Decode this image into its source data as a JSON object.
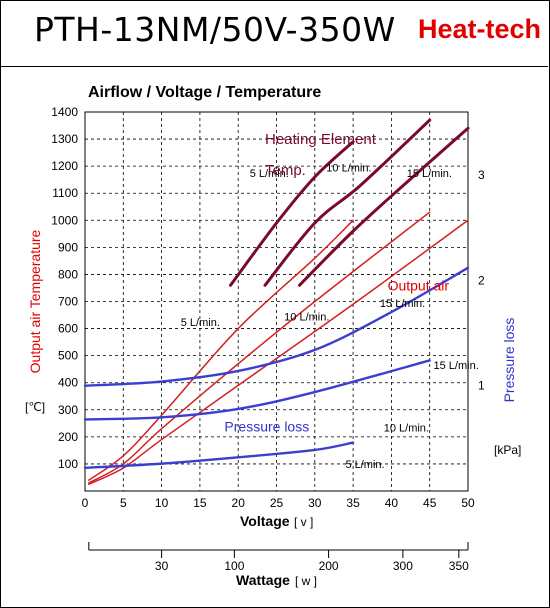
{
  "header": {
    "title": "PTH-13NM/50V-350W",
    "brand": "Heat-tech"
  },
  "chart_data": {
    "type": "line",
    "title": "Airflow / Voltage / Temperature",
    "xlabel": "Voltage",
    "xunit": "[ v ]",
    "ylabel": "Output air Temperature",
    "yunit": "[℃]",
    "y2label": "Pressure loss",
    "y2unit": "[kPa]",
    "x2label": "Wattage",
    "x2unit": "[ w ]",
    "xlim": [
      0,
      50
    ],
    "ylim": [
      0,
      1400
    ],
    "y2lim": [
      0,
      3.6
    ],
    "xticks": [
      0,
      5,
      10,
      15,
      20,
      25,
      30,
      35,
      40,
      45,
      50
    ],
    "yticks": [
      100,
      200,
      300,
      400,
      500,
      600,
      700,
      800,
      900,
      1000,
      1100,
      1200,
      1300,
      1400
    ],
    "y2ticks": [
      1,
      2,
      3
    ],
    "wattage_ticks": [
      {
        "label": "30",
        "voltage": 10
      },
      {
        "label": "100",
        "voltage": 19.5
      },
      {
        "label": "200",
        "voltage": 31.8
      },
      {
        "label": "300",
        "voltage": 41.5
      },
      {
        "label": "350",
        "voltage": 48.8
      }
    ],
    "grid": true,
    "groups": {
      "element": "Heating Element\nTemp.",
      "output": "Output air",
      "pressure": "Pressure loss"
    },
    "series": [
      {
        "group": "element",
        "name": "5 L/min.",
        "x": [
          19,
          25,
          30,
          35
        ],
        "y": [
          760,
          990,
          1160,
          1290
        ]
      },
      {
        "group": "element",
        "name": "10 L/min.",
        "x": [
          23.5,
          30,
          36,
          45
        ],
        "y": [
          760,
          990,
          1130,
          1370
        ]
      },
      {
        "group": "element",
        "name": "15 L/min.",
        "x": [
          28,
          35,
          42,
          50
        ],
        "y": [
          760,
          960,
          1140,
          1340
        ]
      },
      {
        "group": "output",
        "name": "5 L/min.",
        "x": [
          0.5,
          5,
          10,
          20,
          30,
          35
        ],
        "y": [
          40,
          130,
          280,
          600,
          860,
          1000
        ]
      },
      {
        "group": "output",
        "name": "10 L/min.",
        "x": [
          0.5,
          5,
          10,
          20,
          30,
          45
        ],
        "y": [
          30,
          100,
          230,
          470,
          700,
          1030
        ]
      },
      {
        "group": "output",
        "name": "15 L/min.",
        "x": [
          0.5,
          5,
          10,
          20,
          35,
          50
        ],
        "y": [
          25,
          85,
          190,
          390,
          690,
          1000
        ]
      },
      {
        "group": "pressure",
        "name": "5 L/min.",
        "x": [
          0,
          10,
          20,
          30,
          35
        ],
        "y": [
          0.22,
          0.26,
          0.32,
          0.39,
          0.46
        ]
      },
      {
        "group": "pressure",
        "name": "10 L/min.",
        "x": [
          0,
          10,
          20,
          30,
          45
        ],
        "y": [
          0.68,
          0.7,
          0.78,
          0.94,
          1.24
        ]
      },
      {
        "group": "pressure",
        "name": "15 L/min.",
        "x": [
          0,
          10,
          20,
          30,
          40,
          50
        ],
        "y": [
          1.0,
          1.04,
          1.14,
          1.34,
          1.7,
          2.12
        ]
      }
    ],
    "labels": [
      {
        "group": "element",
        "text": "5 L/min.",
        "x": 21.5,
        "y": 1160
      },
      {
        "group": "element",
        "text": "10 L/min.",
        "x": 31.5,
        "y": 1180
      },
      {
        "group": "element",
        "text": "15 L/min.",
        "x": 42,
        "y": 1160
      },
      {
        "group": "output",
        "text": "5 L/min.",
        "x": 12.5,
        "y": 610
      },
      {
        "group": "output",
        "text": "10 L/min.",
        "x": 26,
        "y": 630
      },
      {
        "group": "output",
        "text": "15 L/min.",
        "x": 38.5,
        "y": 680
      },
      {
        "group": "pressure",
        "text": "5 L/min.",
        "x": 34,
        "y": 85
      },
      {
        "group": "pressure",
        "text": "10 L/min.",
        "x": 39,
        "y": 220
      },
      {
        "group": "pressure",
        "text": "15 L/min.",
        "x": 45.5,
        "y": 450
      }
    ],
    "colors": {
      "element": "#7a0a28",
      "output": "#d42020",
      "pressure": "#3a3fd0",
      "axis_red": "#e00000",
      "axis_blue": "#3333cc"
    }
  }
}
